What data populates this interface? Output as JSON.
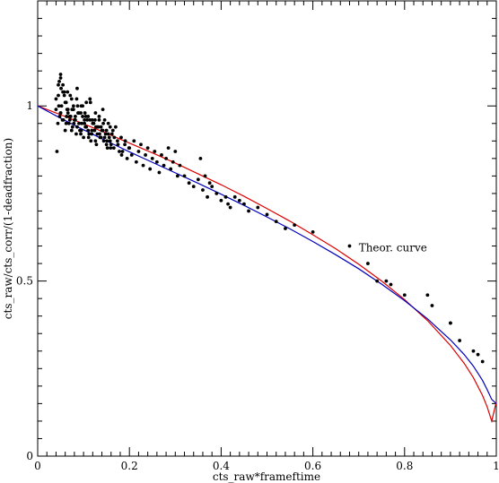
{
  "chart_data": {
    "type": "scatter",
    "xlabel": "cts_raw*frameftime",
    "ylabel": "cts_raw/cts_corr/(1-deadfraction)",
    "xlim": [
      0,
      1
    ],
    "ylim": [
      0,
      1.3
    ],
    "x_ticks": [
      {
        "value": 0,
        "label": "0"
      },
      {
        "value": 0.2,
        "label": "0.2"
      },
      {
        "value": 0.4,
        "label": "0.4"
      },
      {
        "value": 0.6,
        "label": "0.6"
      },
      {
        "value": 0.8,
        "label": "0.8"
      },
      {
        "value": 1,
        "label": "1"
      }
    ],
    "y_ticks": [
      {
        "value": 0,
        "label": "0"
      },
      {
        "value": 0.5,
        "label": "0.5"
      },
      {
        "value": 1,
        "label": "1"
      }
    ],
    "annotation": {
      "text": "Theor. curve",
      "x": 0.7,
      "y": 0.585
    },
    "colors": {
      "theoretical": "#dd0000",
      "fit": "#0000bb",
      "points": "#000000"
    },
    "series": [
      {
        "type": "curve",
        "key": "theoretical",
        "x": [
          0,
          0.05,
          0.1,
          0.15,
          0.2,
          0.25,
          0.3,
          0.35,
          0.4,
          0.45,
          0.5,
          0.55,
          0.6,
          0.65,
          0.7,
          0.75,
          0.8,
          0.85,
          0.9,
          0.93,
          0.95,
          0.97,
          0.98,
          0.99,
          1.0
        ],
        "y": [
          1.0,
          0.975,
          0.949,
          0.922,
          0.894,
          0.866,
          0.837,
          0.806,
          0.775,
          0.742,
          0.707,
          0.671,
          0.632,
          0.592,
          0.548,
          0.5,
          0.447,
          0.387,
          0.316,
          0.265,
          0.224,
          0.173,
          0.141,
          0.1,
          0.155
        ]
      },
      {
        "type": "curve",
        "key": "fit",
        "x": [
          0,
          0.05,
          0.1,
          0.15,
          0.2,
          0.25,
          0.3,
          0.35,
          0.4,
          0.45,
          0.5,
          0.55,
          0.6,
          0.65,
          0.7,
          0.75,
          0.8,
          0.85,
          0.9,
          0.93,
          0.95,
          0.97,
          0.98,
          0.99,
          1.0
        ],
        "y": [
          1.0,
          0.965,
          0.932,
          0.9,
          0.869,
          0.839,
          0.809,
          0.779,
          0.748,
          0.716,
          0.683,
          0.649,
          0.613,
          0.575,
          0.535,
          0.491,
          0.444,
          0.392,
          0.332,
          0.29,
          0.257,
          0.216,
          0.19,
          0.162,
          0.15
        ]
      },
      {
        "type": "points",
        "key": "points",
        "x": [
          0.04,
          0.045,
          0.05,
          0.055,
          0.06,
          0.04,
          0.048,
          0.052,
          0.058,
          0.062,
          0.066,
          0.07,
          0.074,
          0.078,
          0.082,
          0.086,
          0.09,
          0.094,
          0.098,
          0.102,
          0.106,
          0.11,
          0.114,
          0.118,
          0.122,
          0.126,
          0.13,
          0.134,
          0.138,
          0.142,
          0.146,
          0.15,
          0.154,
          0.158,
          0.162,
          0.166,
          0.17,
          0.174,
          0.178,
          0.182,
          0.044,
          0.05,
          0.056,
          0.06,
          0.064,
          0.068,
          0.072,
          0.076,
          0.08,
          0.084,
          0.088,
          0.092,
          0.096,
          0.1,
          0.104,
          0.108,
          0.112,
          0.116,
          0.12,
          0.124,
          0.128,
          0.132,
          0.136,
          0.14,
          0.144,
          0.148,
          0.152,
          0.156,
          0.16,
          0.164,
          0.042,
          0.046,
          0.05,
          0.054,
          0.058,
          0.062,
          0.066,
          0.07,
          0.074,
          0.078,
          0.082,
          0.086,
          0.09,
          0.094,
          0.098,
          0.102,
          0.106,
          0.11,
          0.114,
          0.118,
          0.122,
          0.126,
          0.13,
          0.134,
          0.138,
          0.142,
          0.146,
          0.15,
          0.154,
          0.158,
          0.047,
          0.051,
          0.063,
          0.071,
          0.079,
          0.087,
          0.095,
          0.103,
          0.111,
          0.119,
          0.127,
          0.135,
          0.143,
          0.151,
          0.159,
          0.167,
          0.175,
          0.183,
          0.191,
          0.199,
          0.185,
          0.19,
          0.195,
          0.2,
          0.205,
          0.21,
          0.215,
          0.22,
          0.225,
          0.23,
          0.235,
          0.24,
          0.245,
          0.25,
          0.255,
          0.26,
          0.265,
          0.27,
          0.275,
          0.28,
          0.285,
          0.29,
          0.295,
          0.3,
          0.305,
          0.31,
          0.32,
          0.33,
          0.34,
          0.35,
          0.355,
          0.36,
          0.365,
          0.37,
          0.375,
          0.38,
          0.39,
          0.4,
          0.41,
          0.415,
          0.42,
          0.43,
          0.44,
          0.45,
          0.46,
          0.48,
          0.5,
          0.52,
          0.54,
          0.56,
          0.6,
          0.68,
          0.72,
          0.74,
          0.76,
          0.77,
          0.8,
          0.85,
          0.86,
          0.9,
          0.9,
          0.92,
          0.95,
          0.96,
          0.97,
          0.055,
          0.065,
          0.075,
          0.085,
          0.095,
          0.105,
          0.115,
          0.125,
          0.045,
          0.05
        ],
        "y": [
          1.02,
          1.06,
          1.09,
          1.04,
          1.01,
          0.99,
          0.97,
          1.0,
          1.03,
          1.01,
          0.98,
          0.96,
          1.02,
          0.99,
          0.97,
          1.05,
          0.95,
          0.98,
          1.0,
          0.96,
          0.94,
          0.97,
          1.02,
          0.93,
          0.95,
          0.98,
          0.92,
          0.96,
          0.94,
          0.99,
          0.91,
          0.93,
          0.95,
          0.9,
          0.92,
          0.88,
          0.94,
          0.9,
          0.87,
          0.91,
          0.95,
          0.98,
          0.96,
          0.93,
          0.99,
          0.95,
          0.97,
          0.94,
          0.96,
          0.92,
          0.98,
          0.93,
          0.95,
          0.91,
          0.94,
          0.96,
          0.92,
          0.9,
          0.95,
          0.93,
          0.89,
          0.94,
          0.91,
          0.93,
          0.9,
          0.92,
          0.88,
          0.91,
          0.89,
          0.93,
          0.87,
          1.0,
          0.98,
          0.96,
          1.04,
          0.95,
          0.99,
          0.97,
          0.93,
          1.0,
          0.96,
          0.94,
          0.98,
          0.92,
          0.97,
          0.95,
          1.01,
          0.93,
          0.96,
          0.92,
          0.95,
          0.9,
          0.94,
          0.97,
          0.91,
          0.93,
          0.96,
          0.89,
          0.92,
          0.94,
          1.07,
          1.05,
          0.97,
          1.03,
          0.95,
          1.0,
          0.93,
          0.98,
          0.91,
          0.96,
          0.94,
          0.92,
          0.95,
          0.9,
          0.88,
          0.91,
          0.89,
          0.86,
          0.9,
          0.88,
          0.87,
          0.89,
          0.85,
          0.88,
          0.86,
          0.9,
          0.84,
          0.87,
          0.89,
          0.83,
          0.86,
          0.88,
          0.82,
          0.85,
          0.87,
          0.84,
          0.81,
          0.86,
          0.83,
          0.85,
          0.88,
          0.82,
          0.84,
          0.87,
          0.8,
          0.83,
          0.8,
          0.78,
          0.77,
          0.79,
          0.85,
          0.76,
          0.8,
          0.74,
          0.78,
          0.77,
          0.75,
          0.73,
          0.74,
          0.72,
          0.71,
          0.74,
          0.73,
          0.72,
          0.7,
          0.71,
          0.69,
          0.67,
          0.65,
          0.66,
          0.64,
          0.6,
          0.55,
          0.5,
          0.5,
          0.49,
          0.46,
          0.46,
          0.43,
          0.38,
          0.38,
          0.33,
          0.3,
          0.29,
          0.27,
          1.06,
          1.04,
          0.99,
          1.02,
          1.0,
          0.97,
          1.01,
          0.96,
          1.03,
          1.08
        ]
      }
    ]
  }
}
